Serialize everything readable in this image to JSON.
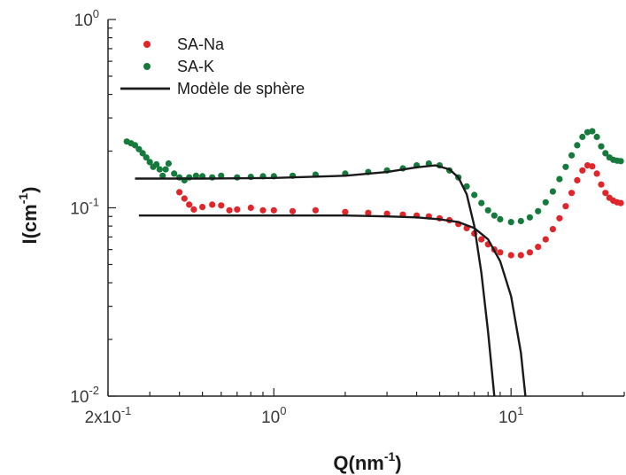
{
  "chart_data": {
    "type": "scatter",
    "x_scale": "log",
    "y_scale": "log",
    "xlim": [
      0.2,
      30
    ],
    "ylim": [
      0.01,
      1
    ],
    "xlabel": {
      "base": "Q(nm",
      "sup": "-1",
      "close": ")"
    },
    "ylabel": {
      "base": "I(cm",
      "sup": "-1",
      "close": ")"
    },
    "x_ticks": [
      {
        "value": 0.2,
        "base": "2x10",
        "exp": "-1"
      },
      {
        "value": 1,
        "base": "10",
        "exp": "0"
      },
      {
        "value": 10,
        "base": "10",
        "exp": "1"
      }
    ],
    "y_ticks": [
      {
        "value": 0.01,
        "base": "10",
        "exp": "-2"
      },
      {
        "value": 0.1,
        "base": "10",
        "exp": "-1"
      },
      {
        "value": 1,
        "base": "10",
        "exp": "0"
      }
    ],
    "legend_position": "top-left",
    "series": [
      {
        "name": "SA-Na",
        "marker": "dot",
        "color": "#e0262a",
        "points": [
          [
            0.4,
            0.121
          ],
          [
            0.42,
            0.112
          ],
          [
            0.44,
            0.104
          ],
          [
            0.46,
            0.098
          ],
          [
            0.5,
            0.101
          ],
          [
            0.55,
            0.104
          ],
          [
            0.6,
            0.103
          ],
          [
            0.65,
            0.097
          ],
          [
            0.7,
            0.098
          ],
          [
            0.8,
            0.1
          ],
          [
            0.9,
            0.097
          ],
          [
            1.0,
            0.097
          ],
          [
            1.2,
            0.096
          ],
          [
            1.5,
            0.097
          ],
          [
            2.0,
            0.095
          ],
          [
            2.5,
            0.094
          ],
          [
            3.0,
            0.093
          ],
          [
            3.5,
            0.092
          ],
          [
            4.0,
            0.091
          ],
          [
            4.5,
            0.09
          ],
          [
            5.0,
            0.088
          ],
          [
            5.5,
            0.086
          ],
          [
            6.0,
            0.082
          ],
          [
            6.5,
            0.078
          ],
          [
            7.0,
            0.073
          ],
          [
            7.5,
            0.068
          ],
          [
            8.0,
            0.064
          ],
          [
            8.5,
            0.06
          ],
          [
            9.0,
            0.058
          ],
          [
            10.0,
            0.056
          ],
          [
            11.0,
            0.056
          ],
          [
            12.0,
            0.058
          ],
          [
            13.0,
            0.062
          ],
          [
            14.0,
            0.068
          ],
          [
            15.0,
            0.077
          ],
          [
            16.0,
            0.088
          ],
          [
            17.0,
            0.102
          ],
          [
            18.0,
            0.12
          ],
          [
            19.0,
            0.14
          ],
          [
            20.0,
            0.158
          ],
          [
            21.0,
            0.168
          ],
          [
            22.0,
            0.166
          ],
          [
            23.0,
            0.152
          ],
          [
            24.0,
            0.133
          ],
          [
            25.0,
            0.12
          ],
          [
            26.0,
            0.113
          ],
          [
            27.0,
            0.109
          ],
          [
            28.0,
            0.107
          ],
          [
            29.0,
            0.106
          ]
        ]
      },
      {
        "name": "SA-K",
        "marker": "dot",
        "color": "#167a3c",
        "points": [
          [
            0.24,
            0.225
          ],
          [
            0.25,
            0.22
          ],
          [
            0.26,
            0.215
          ],
          [
            0.27,
            0.205
          ],
          [
            0.28,
            0.195
          ],
          [
            0.29,
            0.185
          ],
          [
            0.3,
            0.175
          ],
          [
            0.31,
            0.165
          ],
          [
            0.32,
            0.17
          ],
          [
            0.33,
            0.16
          ],
          [
            0.34,
            0.148
          ],
          [
            0.35,
            0.16
          ],
          [
            0.36,
            0.172
          ],
          [
            0.38,
            0.152
          ],
          [
            0.4,
            0.145
          ],
          [
            0.42,
            0.14
          ],
          [
            0.44,
            0.145
          ],
          [
            0.47,
            0.148
          ],
          [
            0.5,
            0.147
          ],
          [
            0.55,
            0.145
          ],
          [
            0.6,
            0.148
          ],
          [
            0.7,
            0.145
          ],
          [
            0.8,
            0.146
          ],
          [
            0.9,
            0.147
          ],
          [
            1.0,
            0.147
          ],
          [
            1.2,
            0.148
          ],
          [
            1.5,
            0.15
          ],
          [
            2.0,
            0.152
          ],
          [
            2.5,
            0.155
          ],
          [
            3.0,
            0.158
          ],
          [
            3.5,
            0.162
          ],
          [
            4.0,
            0.168
          ],
          [
            4.5,
            0.172
          ],
          [
            5.0,
            0.168
          ],
          [
            5.5,
            0.158
          ],
          [
            6.0,
            0.145
          ],
          [
            6.5,
            0.13
          ],
          [
            7.0,
            0.117
          ],
          [
            7.5,
            0.106
          ],
          [
            8.0,
            0.097
          ],
          [
            8.5,
            0.091
          ],
          [
            9.0,
            0.087
          ],
          [
            10.0,
            0.084
          ],
          [
            11.0,
            0.085
          ],
          [
            12.0,
            0.089
          ],
          [
            13.0,
            0.096
          ],
          [
            14.0,
            0.107
          ],
          [
            15.0,
            0.122
          ],
          [
            16.0,
            0.142
          ],
          [
            17.0,
            0.165
          ],
          [
            18.0,
            0.19
          ],
          [
            19.0,
            0.215
          ],
          [
            20.0,
            0.238
          ],
          [
            21.0,
            0.252
          ],
          [
            22.0,
            0.255
          ],
          [
            23.0,
            0.238
          ],
          [
            24.0,
            0.212
          ],
          [
            25.0,
            0.195
          ],
          [
            26.0,
            0.185
          ],
          [
            27.0,
            0.18
          ],
          [
            28.0,
            0.178
          ],
          [
            29.0,
            0.177
          ]
        ]
      },
      {
        "name": "Modèle de sphère",
        "marker": "line",
        "color": "#1a1a1a",
        "curves": [
          [
            [
              0.26,
              0.143
            ],
            [
              0.5,
              0.143
            ],
            [
              1.0,
              0.144
            ],
            [
              2.0,
              0.148
            ],
            [
              3.0,
              0.155
            ],
            [
              4.0,
              0.164
            ],
            [
              4.8,
              0.168
            ],
            [
              5.5,
              0.16
            ],
            [
              6.0,
              0.145
            ],
            [
              6.5,
              0.118
            ],
            [
              7.0,
              0.08
            ],
            [
              7.5,
              0.045
            ],
            [
              8.0,
              0.022
            ],
            [
              8.5,
              0.01
            ]
          ],
          [
            [
              0.27,
              0.091
            ],
            [
              0.5,
              0.091
            ],
            [
              1.0,
              0.091
            ],
            [
              2.0,
              0.091
            ],
            [
              3.0,
              0.09
            ],
            [
              4.0,
              0.089
            ],
            [
              5.0,
              0.087
            ],
            [
              6.0,
              0.084
            ],
            [
              7.0,
              0.078
            ],
            [
              8.0,
              0.068
            ],
            [
              9.0,
              0.052
            ],
            [
              10.0,
              0.034
            ],
            [
              11.0,
              0.017
            ],
            [
              11.5,
              0.01
            ]
          ]
        ]
      }
    ]
  }
}
